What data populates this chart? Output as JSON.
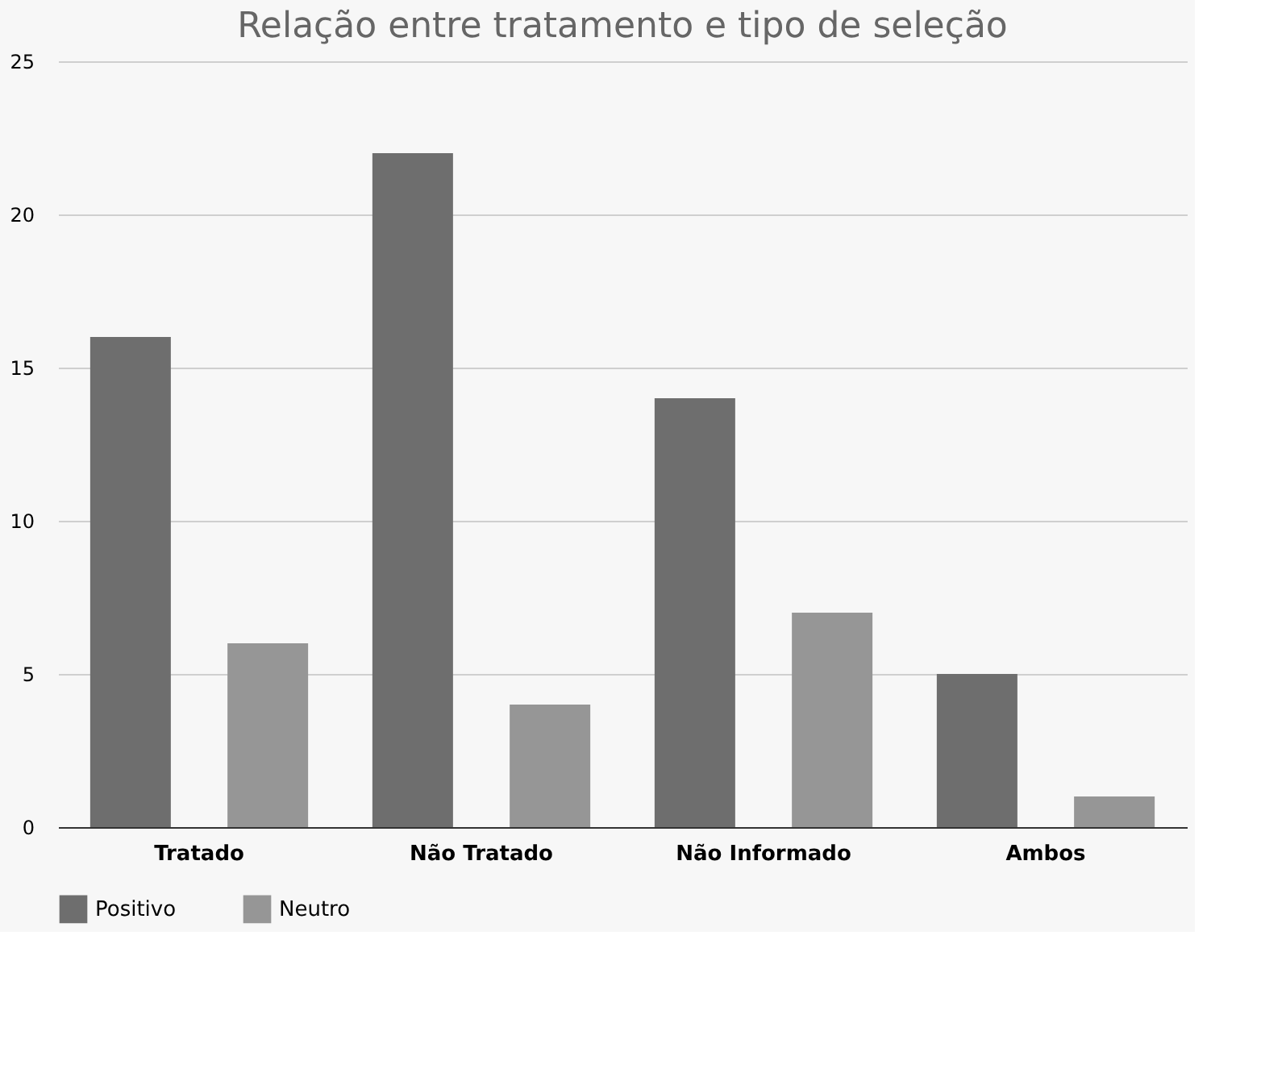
{
  "chart_data": {
    "type": "bar",
    "title": "Relação entre tratamento e tipo de seleção",
    "categories": [
      "Tratado",
      "Não Tratado",
      "Não Informado",
      "Ambos"
    ],
    "series": [
      {
        "name": "Positivo",
        "color": "#6e6e6e",
        "values": [
          16,
          22,
          14,
          5
        ]
      },
      {
        "name": "Neutro",
        "color": "#969696",
        "values": [
          6,
          4,
          7,
          1
        ]
      }
    ],
    "ylim": [
      0,
      25
    ],
    "yticks": [
      0,
      5,
      10,
      15,
      20,
      25
    ],
    "grid": "y",
    "legend": "bottom"
  }
}
